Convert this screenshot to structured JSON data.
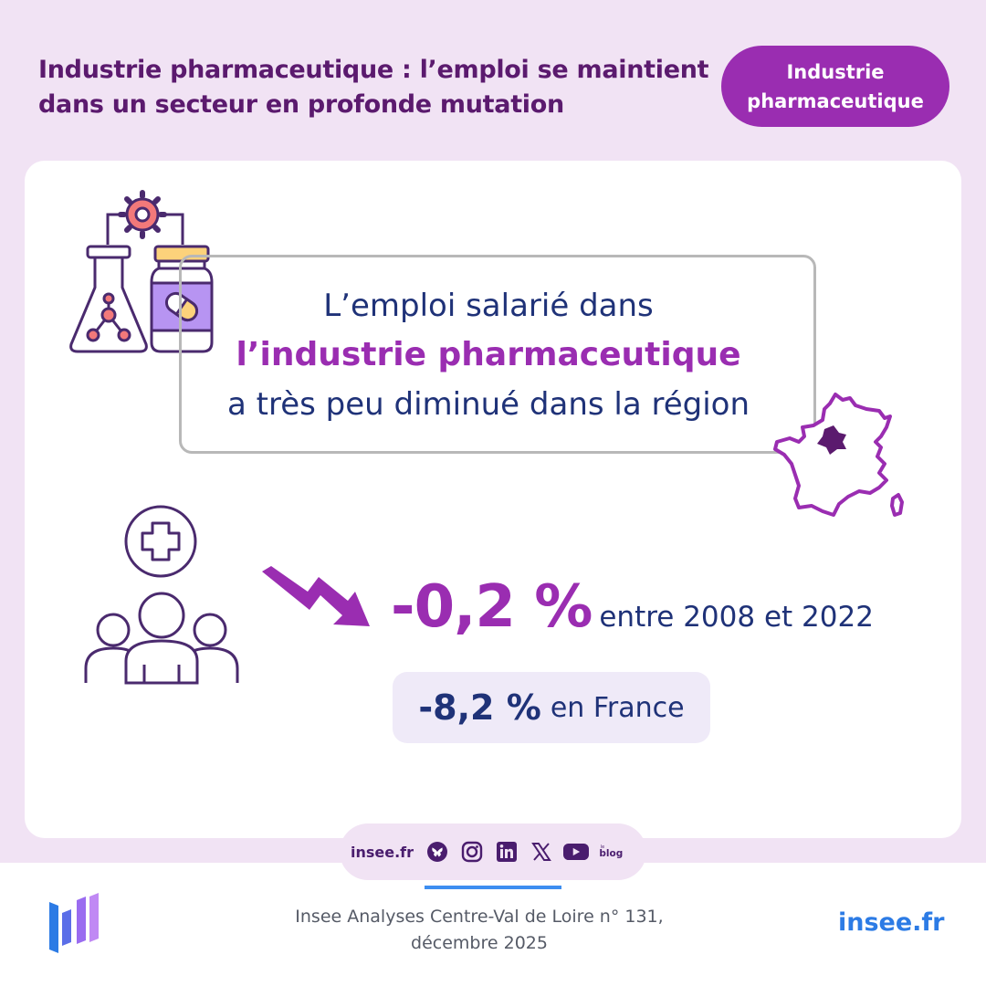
{
  "header": {
    "title": "Industrie pharmaceutique : l’emploi se maintient dans un secteur en profonde mutation",
    "tag": "Industrie pharmaceutique"
  },
  "message": {
    "line1": "L’emploi salarié dans",
    "line2": "l’industrie pharmaceutique",
    "line3": "a très peu diminué dans la région"
  },
  "stats": {
    "region_value": "-0,2 %",
    "region_text": "entre 2008 et 2022",
    "france_value": "-8,2 %",
    "france_text": "en France"
  },
  "social": {
    "site": "insee.fr",
    "icons": [
      "bluesky-icon",
      "instagram-icon",
      "linkedin-icon",
      "x-icon",
      "youtube-icon",
      "blog-icon"
    ],
    "blog_small": "le",
    "blog_label": "blog"
  },
  "footer": {
    "reference": "Insee Analyses Centre-Val de Loire n° 131, décembre 2025",
    "site": "insee.fr"
  },
  "colors": {
    "brand_purple": "#9a2db1",
    "dark_purple": "#5b1a6e",
    "navy": "#1f3278",
    "background_lilac": "#f1e3f4",
    "link_blue": "#2c7be5"
  }
}
